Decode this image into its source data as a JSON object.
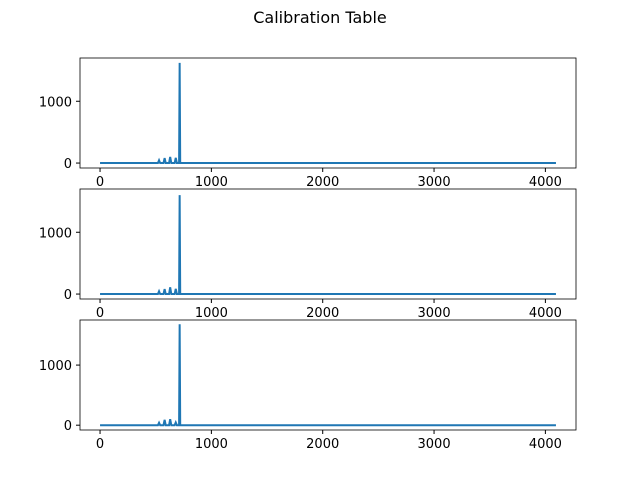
{
  "figure": {
    "title": "Calibration Table"
  },
  "chart_data": [
    {
      "type": "line",
      "title": "",
      "xlabel": "",
      "ylabel": "",
      "xlim": [
        -180,
        4275
      ],
      "ylim": [
        -80,
        1700
      ],
      "x_ticks": [
        0,
        1000,
        2000,
        3000,
        4000
      ],
      "y_ticks": [
        0,
        1000
      ],
      "grid": false,
      "series": [
        {
          "color": "#1f77b4",
          "x": [
            0,
            520,
            530,
            540,
            570,
            580,
            590,
            620,
            630,
            640,
            670,
            680,
            690,
            710,
            715,
            720,
            4095
          ],
          "y": [
            0,
            0,
            45,
            0,
            0,
            80,
            0,
            0,
            100,
            0,
            0,
            85,
            0,
            0,
            1620,
            0,
            0
          ]
        }
      ]
    },
    {
      "type": "line",
      "title": "",
      "xlabel": "",
      "ylabel": "",
      "xlim": [
        -180,
        4275
      ],
      "ylim": [
        -80,
        1700
      ],
      "x_ticks": [
        0,
        1000,
        2000,
        3000,
        4000
      ],
      "y_ticks": [
        0,
        1000
      ],
      "grid": false,
      "series": [
        {
          "color": "#1f77b4",
          "x": [
            0,
            520,
            530,
            540,
            570,
            580,
            590,
            620,
            630,
            640,
            670,
            680,
            690,
            710,
            715,
            720,
            4095
          ],
          "y": [
            0,
            0,
            45,
            0,
            0,
            80,
            0,
            0,
            110,
            0,
            0,
            85,
            0,
            0,
            1600,
            0,
            0
          ]
        }
      ]
    },
    {
      "type": "line",
      "title": "",
      "xlabel": "",
      "ylabel": "",
      "xlim": [
        -180,
        4275
      ],
      "ylim": [
        -80,
        1750
      ],
      "x_ticks": [
        0,
        1000,
        2000,
        3000,
        4000
      ],
      "y_ticks": [
        0,
        1000
      ],
      "grid": false,
      "series": [
        {
          "color": "#1f77b4",
          "x": [
            0,
            520,
            530,
            540,
            570,
            580,
            590,
            620,
            630,
            640,
            670,
            680,
            690,
            710,
            715,
            720,
            4095
          ],
          "y": [
            0,
            0,
            40,
            0,
            0,
            90,
            0,
            0,
            100,
            0,
            0,
            45,
            0,
            0,
            1680,
            0,
            0
          ]
        }
      ]
    }
  ]
}
